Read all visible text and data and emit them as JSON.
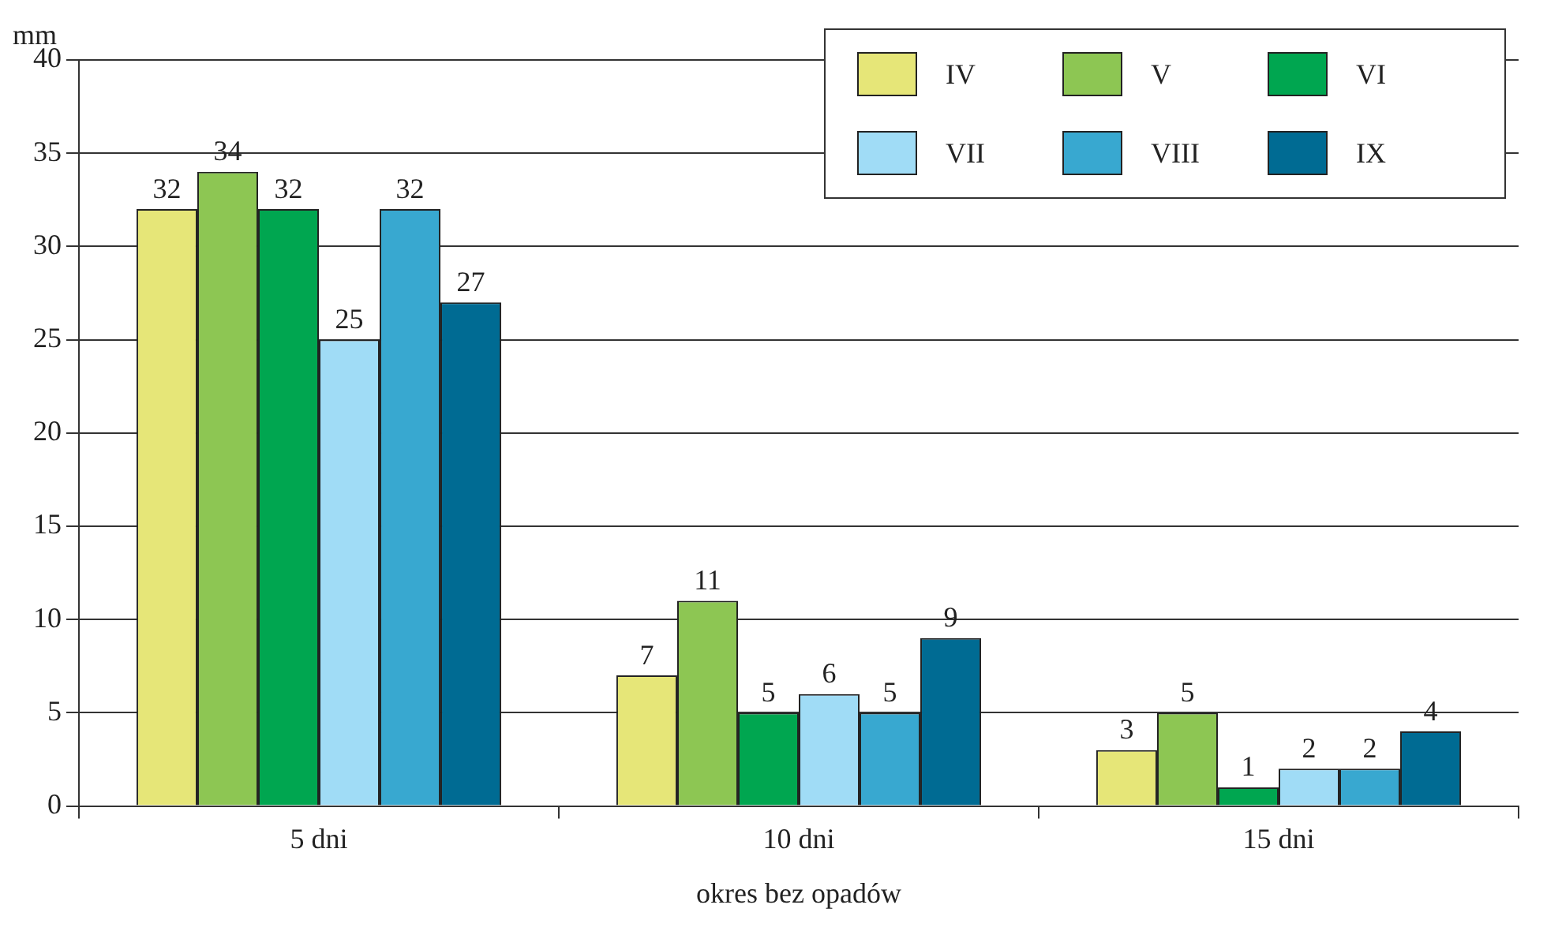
{
  "chart_data": {
    "type": "bar",
    "xlabel": "okres bez opadów",
    "ylabel": "mm",
    "categories": [
      "5 dni",
      "10 dni",
      "15 dni"
    ],
    "series": [
      {
        "name": "IV",
        "color": "#e6e678",
        "values": [
          32,
          7,
          3
        ]
      },
      {
        "name": "V",
        "color": "#8dc653",
        "values": [
          34,
          11,
          5
        ]
      },
      {
        "name": "VI",
        "color": "#00a650",
        "values": [
          32,
          5,
          1
        ]
      },
      {
        "name": "VII",
        "color": "#a0dcf6",
        "values": [
          25,
          6,
          2
        ]
      },
      {
        "name": "VIII",
        "color": "#38a8d0",
        "values": [
          32,
          5,
          2
        ]
      },
      {
        "name": "IX",
        "color": "#006b93",
        "values": [
          27,
          9,
          4
        ]
      }
    ],
    "ylim": [
      0,
      40
    ],
    "yticks": [
      0,
      5,
      10,
      15,
      20,
      25,
      30,
      35,
      40
    ],
    "grid": "y",
    "legend": "top right",
    "data_labels": true
  }
}
